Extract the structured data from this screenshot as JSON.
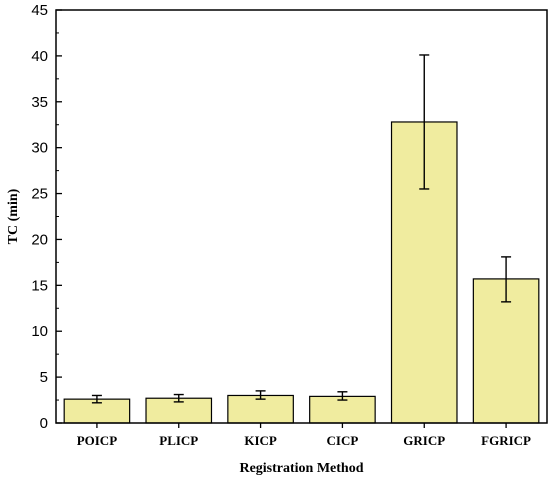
{
  "chart_data": {
    "type": "bar",
    "title": "",
    "xlabel": "Registration Method",
    "ylabel": "TC (min)",
    "categories": [
      "POICP",
      "PLICP",
      "KICP",
      "CICP",
      "GRICP",
      "FGRICP"
    ],
    "values": [
      2.6,
      2.7,
      3.0,
      2.9,
      32.8,
      15.7
    ],
    "error_low": [
      2.2,
      2.3,
      2.6,
      2.5,
      25.5,
      13.2
    ],
    "error_high": [
      3.0,
      3.1,
      3.5,
      3.4,
      40.1,
      18.1
    ],
    "ylim": [
      0,
      45
    ],
    "yticks": [
      0,
      5,
      10,
      15,
      20,
      25,
      30,
      35,
      40,
      45
    ],
    "ytick_labels": [
      "0",
      "5",
      "10",
      "15",
      "20",
      "25",
      "30",
      "35",
      "40",
      "45"
    ],
    "bar_color": "#f0ec9f",
    "bar_edge_color": "#000000",
    "grid": false,
    "legend": "none"
  }
}
